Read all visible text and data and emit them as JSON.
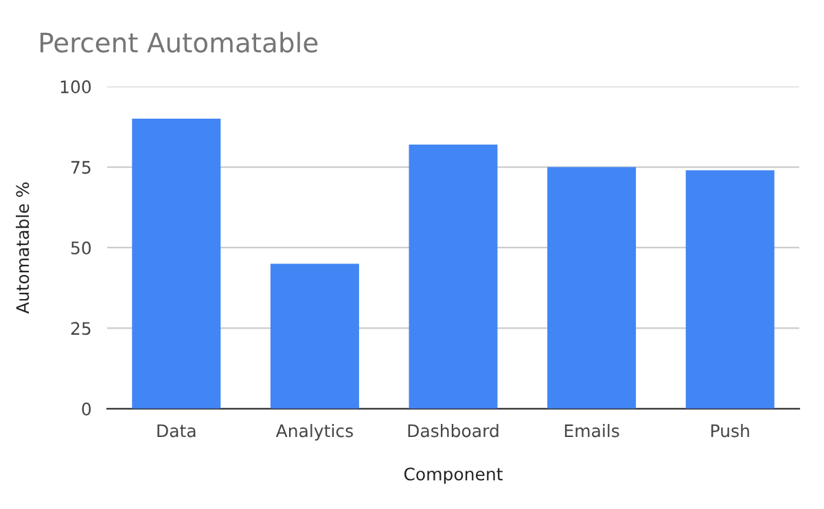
{
  "chart_data": {
    "type": "bar",
    "title": "Percent Automatable",
    "xlabel": "Component",
    "ylabel": "Automatable %",
    "categories": [
      "Data",
      "Analytics",
      "Dashboard",
      "Emails",
      "Push"
    ],
    "values": [
      90,
      45,
      82,
      75,
      74
    ],
    "color": "#4285f4",
    "ylim": [
      0,
      100
    ],
    "yticks": [
      0,
      25,
      50,
      75,
      100
    ],
    "grid": "y",
    "legend": false
  }
}
